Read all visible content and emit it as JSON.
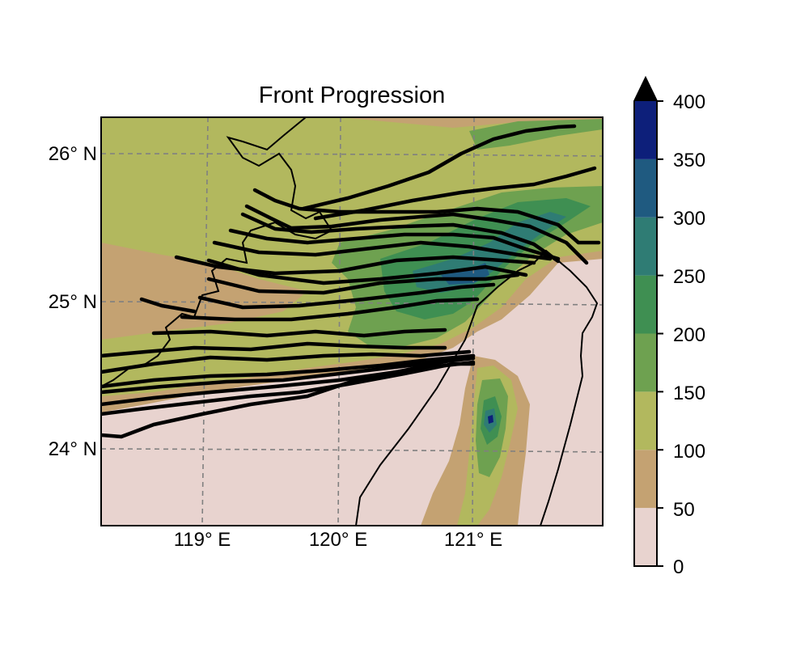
{
  "title": "Front Progression",
  "map": {
    "lon_ticks": [
      "119° E",
      "120° E",
      "121° E"
    ],
    "lat_ticks": [
      "26° N",
      "25° N",
      "24° N"
    ],
    "gridlines": "dashed gray",
    "coastline_color": "#000000",
    "front_color": "#000000"
  },
  "colorbar": {
    "ticks": [
      "400",
      "350",
      "300",
      "250",
      "200",
      "150",
      "100",
      "50",
      "0"
    ],
    "levels": [
      0,
      50,
      100,
      150,
      200,
      250,
      300,
      350,
      400
    ],
    "colors": [
      "#e8d3cf",
      "#c4a272",
      "#b2b85e",
      "#6ea150",
      "#3f8f52",
      "#2f7c74",
      "#1f5a80",
      "#0d1f7a"
    ],
    "extend": "max",
    "extend_color": "#000000"
  }
}
